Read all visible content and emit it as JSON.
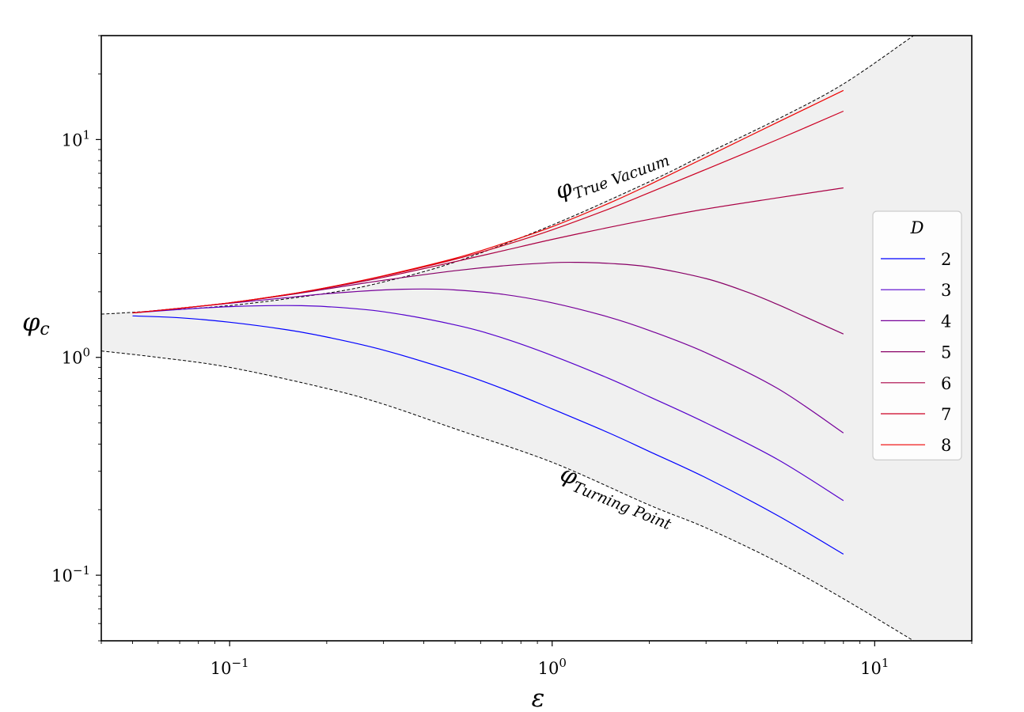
{
  "chart_data": {
    "type": "line",
    "title": "",
    "xlabel": "ε",
    "ylabel": "φc",
    "xscale": "log",
    "yscale": "log",
    "xlim": [
      0.04,
      20
    ],
    "ylim": [
      0.05,
      30
    ],
    "x_ticks": [
      {
        "value": 0.1,
        "base": "10",
        "exp": "−1"
      },
      {
        "value": 1,
        "base": "10",
        "exp": "0"
      },
      {
        "value": 10,
        "base": "10",
        "exp": "1"
      }
    ],
    "y_ticks": [
      {
        "value": 0.1,
        "base": "10",
        "exp": "−1"
      },
      {
        "value": 1,
        "base": "10",
        "exp": "0"
      },
      {
        "value": 10,
        "base": "10",
        "exp": "1"
      }
    ],
    "shaded_region": {
      "between": [
        "True Vacuum",
        "Turning Point"
      ],
      "color": "#f0f0f0"
    },
    "boundaries": [
      {
        "name": "True Vacuum",
        "label_main": "φ",
        "label_sub": "True Vacuum",
        "x": [
          0.04,
          0.05,
          0.1,
          0.2,
          0.3,
          0.5,
          1.0,
          2.0,
          3.0,
          5.0,
          8.0,
          13.2
        ],
        "y": [
          1.58,
          1.61,
          1.73,
          1.97,
          2.22,
          2.74,
          4.05,
          6.4,
          8.6,
          12.4,
          18.0,
          30.0
        ]
      },
      {
        "name": "Turning Point",
        "label_main": "φ",
        "label_sub": "Turning Point",
        "x": [
          0.04,
          0.06,
          0.1,
          0.2,
          0.3,
          0.5,
          1.0,
          2.0,
          3.0,
          5.0,
          8.0,
          13.2
        ],
        "y": [
          1.07,
          1.0,
          0.9,
          0.72,
          0.61,
          0.47,
          0.33,
          0.21,
          0.165,
          0.115,
          0.078,
          0.05
        ]
      }
    ],
    "legend": {
      "title": "D",
      "position": "center-right"
    },
    "series": [
      {
        "name": "2",
        "color": "#0000ff",
        "x": [
          0.05,
          0.07,
          0.1,
          0.15,
          0.2,
          0.3,
          0.5,
          0.7,
          1.0,
          1.5,
          2.0,
          3.0,
          5.0,
          8.0
        ],
        "y": [
          1.55,
          1.52,
          1.45,
          1.34,
          1.24,
          1.08,
          0.86,
          0.72,
          0.58,
          0.45,
          0.37,
          0.28,
          0.188,
          0.125
        ]
      },
      {
        "name": "3",
        "color": "#5500cc",
        "x": [
          0.05,
          0.07,
          0.1,
          0.15,
          0.2,
          0.3,
          0.5,
          0.7,
          1.0,
          1.5,
          2.0,
          3.0,
          5.0,
          8.0
        ],
        "y": [
          1.6,
          1.66,
          1.71,
          1.73,
          1.71,
          1.62,
          1.41,
          1.23,
          1.02,
          0.8,
          0.66,
          0.5,
          0.34,
          0.22
        ]
      },
      {
        "name": "4",
        "color": "#770099",
        "x": [
          0.05,
          0.07,
          0.1,
          0.15,
          0.2,
          0.3,
          0.4,
          0.5,
          0.7,
          1.0,
          1.5,
          2.0,
          3.0,
          5.0,
          8.0
        ],
        "y": [
          1.6,
          1.68,
          1.77,
          1.88,
          1.96,
          2.04,
          2.06,
          2.04,
          1.95,
          1.78,
          1.53,
          1.33,
          1.05,
          0.72,
          0.45
        ]
      },
      {
        "name": "5",
        "color": "#880066",
        "x": [
          0.05,
          0.07,
          0.1,
          0.15,
          0.2,
          0.3,
          0.5,
          0.7,
          1.0,
          1.2,
          1.5,
          2.0,
          3.0,
          4.0,
          5.0,
          6.0,
          8.0
        ],
        "y": [
          1.6,
          1.68,
          1.78,
          1.93,
          2.06,
          2.26,
          2.5,
          2.63,
          2.72,
          2.73,
          2.7,
          2.6,
          2.3,
          2.0,
          1.75,
          1.55,
          1.28
        ]
      },
      {
        "name": "6",
        "color": "#aa0044",
        "x": [
          0.05,
          0.07,
          0.1,
          0.15,
          0.2,
          0.3,
          0.5,
          0.7,
          1.0,
          1.5,
          2.0,
          3.0,
          5.0,
          8.0
        ],
        "y": [
          1.6,
          1.68,
          1.78,
          1.94,
          2.08,
          2.33,
          2.75,
          3.08,
          3.48,
          3.95,
          4.3,
          4.8,
          5.4,
          6.0
        ]
      },
      {
        "name": "7",
        "color": "#cc0022",
        "x": [
          0.05,
          0.07,
          0.1,
          0.15,
          0.2,
          0.3,
          0.5,
          0.7,
          1.0,
          1.5,
          2.0,
          3.0,
          5.0,
          8.0
        ],
        "y": [
          1.6,
          1.68,
          1.78,
          1.94,
          2.09,
          2.36,
          2.82,
          3.25,
          3.85,
          4.8,
          5.7,
          7.3,
          10.0,
          13.5
        ]
      },
      {
        "name": "8",
        "color": "#ee0000",
        "x": [
          0.05,
          0.07,
          0.1,
          0.15,
          0.2,
          0.3,
          0.5,
          0.7,
          1.0,
          1.5,
          2.0,
          3.0,
          5.0,
          8.0
        ],
        "y": [
          1.6,
          1.68,
          1.78,
          1.94,
          2.09,
          2.37,
          2.85,
          3.32,
          3.98,
          5.1,
          6.2,
          8.3,
          12.0,
          16.8
        ]
      }
    ]
  }
}
